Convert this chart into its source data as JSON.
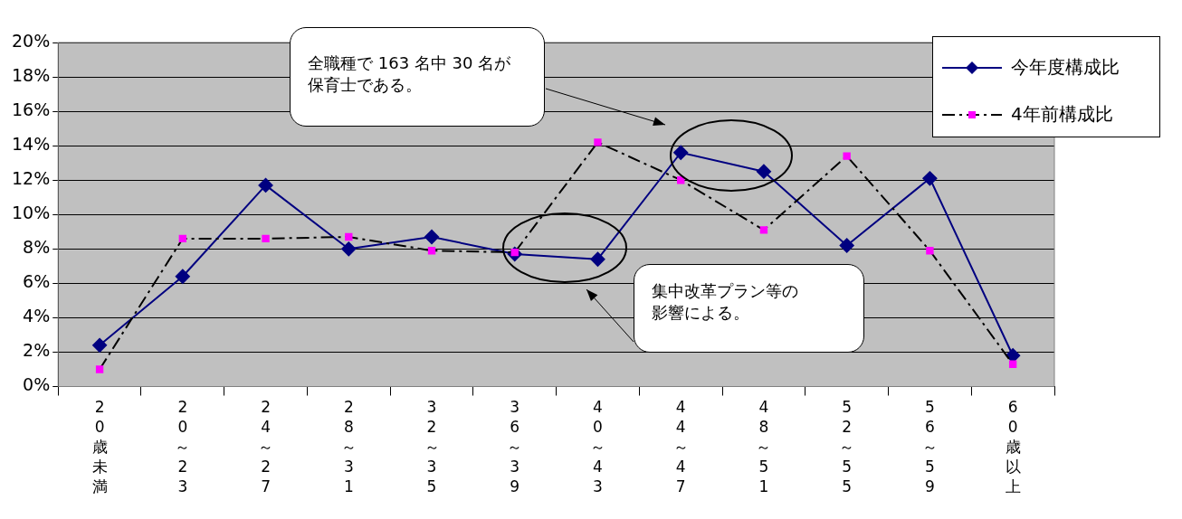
{
  "chart_data": {
    "type": "line",
    "categories": [
      "20歳未満",
      "20～23",
      "24～27",
      "28～31",
      "32～35",
      "36～39",
      "40～43",
      "44～47",
      "48～51",
      "52～55",
      "56～59",
      "60歳以上"
    ],
    "series": [
      {
        "name": "今年度構成比",
        "color": "#000080",
        "marker": "diamond",
        "line_style": "solid",
        "values": [
          2.4,
          6.4,
          11.7,
          8.0,
          8.7,
          7.7,
          7.4,
          13.6,
          12.5,
          8.2,
          12.1,
          1.8
        ]
      },
      {
        "name": "4年前構成比",
        "color": "#000000",
        "colors": [
          "#ff00ff",
          "#ff00ff",
          "#ff00ff",
          "#ff00ff",
          "#ff00ff",
          "#ff00ff",
          "#ff00ff",
          "#ff00ff",
          "#ff00ff",
          "#ff00ff",
          "#ff00ff",
          "#ff00ff"
        ],
        "marker": "square",
        "line_style": "dashed",
        "values": [
          1.0,
          8.6,
          8.6,
          8.7,
          7.9,
          7.8,
          14.2,
          12.0,
          9.1,
          13.4,
          7.9,
          1.3
        ]
      }
    ],
    "ylim": [
      0,
      20
    ],
    "yticks": [
      {
        "value": 0,
        "label": "0%"
      },
      {
        "value": 2,
        "label": "2%"
      },
      {
        "value": 4,
        "label": "4%"
      },
      {
        "value": 6,
        "label": "6%"
      },
      {
        "value": 8,
        "label": "8%"
      },
      {
        "value": 10,
        "label": "10%"
      },
      {
        "value": 12,
        "label": "12%"
      },
      {
        "value": 14,
        "label": "14%"
      },
      {
        "value": 16,
        "label": "16%"
      },
      {
        "value": 18,
        "label": "18%"
      },
      {
        "value": 20,
        "label": "20%"
      }
    ],
    "grid": "y",
    "legend": "top right",
    "annotations": [
      "全職種で 163 名中 30 名が保育士である。",
      "集中改革プラン等の影響による。"
    ]
  }
}
